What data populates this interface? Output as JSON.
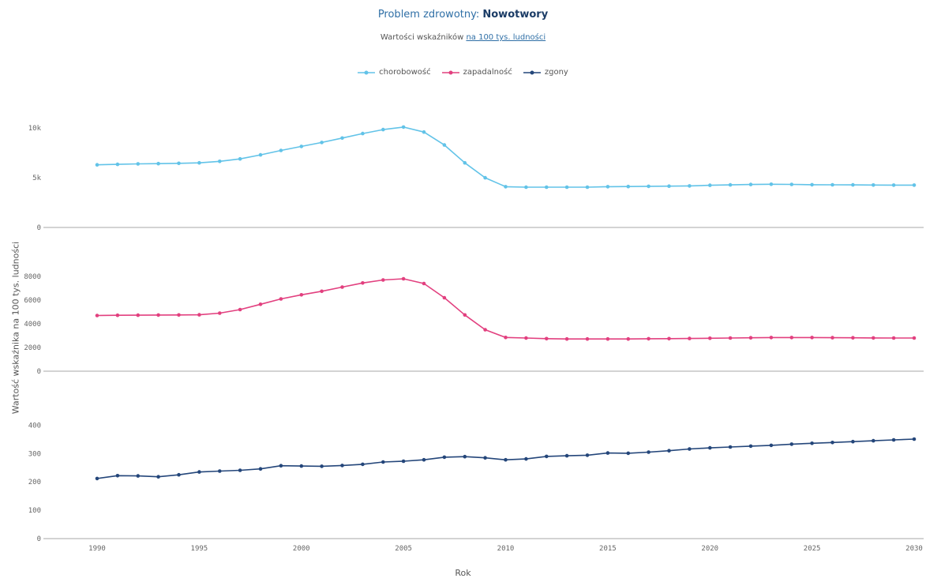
{
  "header": {
    "title_prefix": "Problem zdrowotny:",
    "title_value": "Nowotwory",
    "subtitle_prefix": "Wartości wskaźników",
    "subtitle_link": "na 100 tys. ludności"
  },
  "colors": {
    "chorobowosc": "#62c3e8",
    "zapadalnosc": "#e2407f",
    "zgony": "#24467a"
  },
  "chart_data": {
    "type": "line",
    "ylabel": "Wartość wskaźnika na 100 tys. ludności",
    "xlabel": "Rok",
    "x": [
      1990,
      1991,
      1992,
      1993,
      1994,
      1995,
      1996,
      1997,
      1998,
      1999,
      2000,
      2001,
      2002,
      2003,
      2004,
      2005,
      2006,
      2007,
      2008,
      2009,
      2010,
      2011,
      2012,
      2013,
      2014,
      2015,
      2016,
      2017,
      2018,
      2019,
      2020,
      2021,
      2022,
      2023,
      2024,
      2025,
      2026,
      2027,
      2028,
      2029,
      2030
    ],
    "xticks": [
      "1990",
      "1995",
      "2000",
      "2005",
      "2010",
      "2015",
      "2020",
      "2025",
      "2030"
    ],
    "legend": [
      "chorobowość",
      "zapadalność",
      "zgony"
    ],
    "panels": [
      {
        "name": "chorobowość",
        "ylim": [
          0,
          12000
        ],
        "yticks": [
          0,
          5000,
          10000
        ],
        "ytick_labels": [
          "0",
          "5k",
          "10k"
        ],
        "values": [
          6300,
          6350,
          6400,
          6420,
          6450,
          6500,
          6650,
          6900,
          7300,
          7750,
          8150,
          8550,
          9000,
          9450,
          9850,
          10100,
          9600,
          8300,
          6500,
          5000,
          4100,
          4050,
          4050,
          4050,
          4050,
          4100,
          4120,
          4140,
          4160,
          4180,
          4240,
          4280,
          4320,
          4350,
          4330,
          4300,
          4290,
          4280,
          4270,
          4260,
          4260
        ]
      },
      {
        "name": "zapadalność",
        "ylim": [
          0,
          9000
        ],
        "yticks": [
          0,
          2000,
          4000,
          6000,
          8000
        ],
        "ytick_labels": [
          "0",
          "2000",
          "4000",
          "6000",
          "8000"
        ],
        "values": [
          4700,
          4720,
          4730,
          4740,
          4750,
          4760,
          4900,
          5200,
          5650,
          6100,
          6450,
          6750,
          7100,
          7450,
          7700,
          7800,
          7400,
          6200,
          4750,
          3500,
          2850,
          2800,
          2750,
          2720,
          2720,
          2720,
          2720,
          2740,
          2750,
          2760,
          2780,
          2800,
          2820,
          2840,
          2840,
          2840,
          2830,
          2820,
          2810,
          2800,
          2800
        ]
      },
      {
        "name": "zgony",
        "ylim": [
          0,
          440
        ],
        "yticks": [
          0,
          100,
          200,
          300,
          400
        ],
        "ytick_labels": [
          "0",
          "100",
          "200",
          "300",
          "400"
        ],
        "values": [
          212,
          222,
          221,
          218,
          225,
          235,
          238,
          241,
          246,
          257,
          256,
          255,
          258,
          262,
          270,
          273,
          278,
          287,
          289,
          285,
          278,
          281,
          290,
          292,
          294,
          302,
          301,
          305,
          310,
          316,
          320,
          323,
          326,
          329,
          333,
          336,
          339,
          342,
          345,
          348,
          351
        ]
      }
    ]
  }
}
